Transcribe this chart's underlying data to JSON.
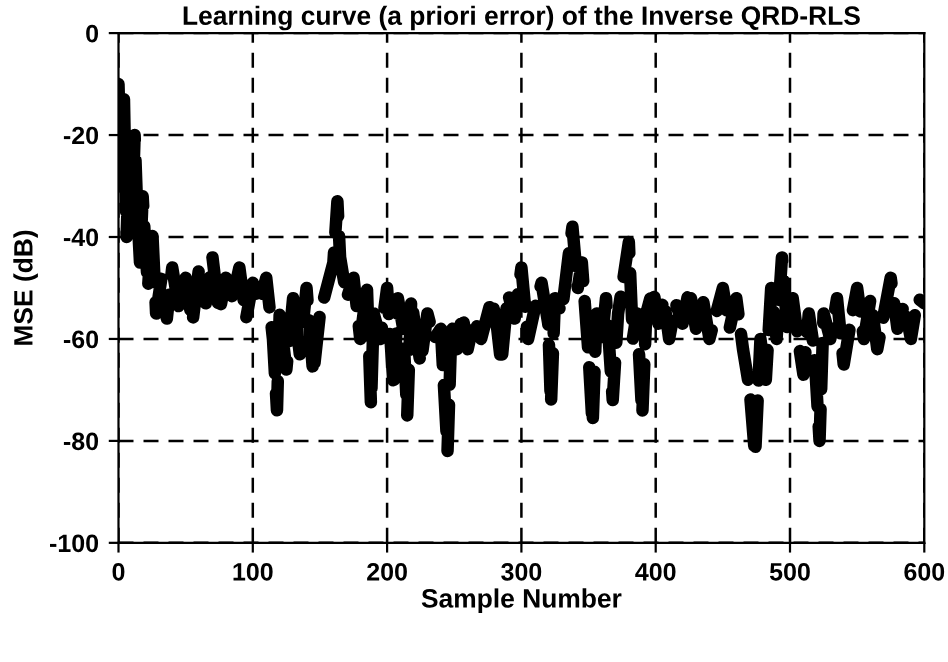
{
  "chart_data": {
    "type": "line",
    "title": "Learning curve (a priori error) of the Inverse QRD-RLS",
    "xlabel": "Sample Number",
    "ylabel": "MSE (dB)",
    "x": [
      0,
      2,
      4,
      6,
      8,
      10,
      12,
      14,
      16,
      18,
      20,
      22,
      25,
      28,
      32,
      36,
      40,
      45,
      50,
      55,
      60,
      65,
      70,
      75,
      80,
      85,
      90,
      95,
      100,
      105,
      110,
      115,
      118,
      120,
      125,
      130,
      135,
      140,
      145,
      150,
      155,
      160,
      163,
      165,
      170,
      175,
      180,
      185,
      188,
      190,
      195,
      200,
      205,
      208,
      212,
      215,
      218,
      222,
      225,
      230,
      235,
      240,
      245,
      248,
      252,
      256,
      260,
      265,
      270,
      275,
      278,
      282,
      285,
      290,
      295,
      300,
      305,
      310,
      315,
      320,
      322,
      325,
      330,
      335,
      338,
      342,
      345,
      350,
      353,
      356,
      360,
      363,
      368,
      372,
      376,
      380,
      383,
      386,
      390,
      393,
      398,
      402,
      406,
      410,
      415,
      420,
      425,
      430,
      435,
      440,
      445,
      450,
      455,
      460,
      465,
      470,
      474,
      478,
      482,
      486,
      490,
      494,
      498,
      502,
      506,
      510,
      514,
      518,
      522,
      525,
      530,
      535,
      540,
      545,
      550,
      555,
      560,
      565,
      570,
      575,
      580,
      585,
      590,
      595,
      600
    ],
    "series": [
      {
        "color": "#000000",
        "values": [
          -10,
          -30,
          -12,
          -40,
          -25,
          -38,
          -20,
          -35,
          -45,
          -32,
          -42,
          -50,
          -38,
          -55,
          -48,
          -56,
          -46,
          -54,
          -48,
          -57,
          -46,
          -53,
          -44,
          -55,
          -48,
          -52,
          -46,
          -56,
          -49,
          -53,
          -48,
          -60,
          -74,
          -55,
          -66,
          -52,
          -63,
          -50,
          -67,
          -55,
          -50,
          -45,
          -33,
          -44,
          -52,
          -48,
          -60,
          -50,
          -73,
          -55,
          -60,
          -50,
          -70,
          -52,
          -58,
          -75,
          -52,
          -60,
          -65,
          -55,
          -60,
          -58,
          -82,
          -57,
          -62,
          -55,
          -62,
          -56,
          -60,
          -55,
          -52,
          -58,
          -65,
          -51,
          -56,
          -46,
          -60,
          -54,
          -49,
          -57,
          -73,
          -52,
          -55,
          -44,
          -38,
          -50,
          -45,
          -63,
          -77,
          -55,
          -60,
          -52,
          -72,
          -55,
          -48,
          -41,
          -60,
          -55,
          -75,
          -55,
          -50,
          -57,
          -52,
          -60,
          -53,
          -57,
          -50,
          -58,
          -52,
          -60,
          -55,
          -50,
          -58,
          -52,
          -62,
          -70,
          -83,
          -60,
          -68,
          -50,
          -60,
          -44,
          -58,
          -52,
          -60,
          -67,
          -55,
          -62,
          -80,
          -55,
          -60,
          -52,
          -65,
          -57,
          -50,
          -60,
          -52,
          -62,
          -55,
          -48,
          -58,
          -53,
          -60,
          -52,
          -53
        ]
      }
    ],
    "xlim": [
      0,
      600
    ],
    "xticks": [
      0,
      100,
      200,
      300,
      400,
      500,
      600
    ],
    "ylim": [
      -100,
      0
    ],
    "yticks": [
      -100,
      -80,
      -60,
      -40,
      -20,
      0
    ],
    "grid": true,
    "marker": "none",
    "line_style": "dashed"
  }
}
